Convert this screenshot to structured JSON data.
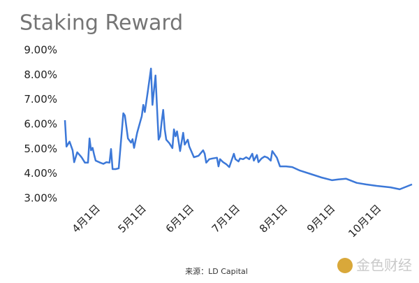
{
  "chart_data": {
    "type": "line",
    "title": "Staking Reward",
    "x": [
      "03-12",
      "03-13",
      "03-15",
      "03-17",
      "03-18",
      "03-20",
      "03-22",
      "03-23",
      "03-25",
      "03-27",
      "03-28",
      "03-29",
      "03-30",
      "03-31",
      "04-01",
      "04-04",
      "04-06",
      "04-08",
      "04-10",
      "04-11",
      "04-12",
      "04-14",
      "04-16",
      "04-19",
      "04-20",
      "04-22",
      "04-24",
      "04-25",
      "04-26",
      "04-28",
      "05-01",
      "05-02",
      "05-03",
      "05-05",
      "05-07",
      "05-08",
      "05-10",
      "05-11",
      "05-12",
      "05-13",
      "05-14",
      "05-15",
      "05-16",
      "05-17",
      "05-19",
      "05-21",
      "05-22",
      "05-23",
      "05-24",
      "05-26",
      "05-28",
      "05-29",
      "05-31",
      "06-01",
      "06-04",
      "06-07",
      "06-10",
      "06-11",
      "06-12",
      "06-14",
      "06-16",
      "06-19",
      "06-20",
      "06-21",
      "06-23",
      "06-25",
      "06-27",
      "06-30",
      "07-01",
      "07-03",
      "07-04",
      "07-06",
      "07-08",
      "07-10",
      "07-12",
      "07-13",
      "07-15",
      "07-16",
      "07-18",
      "07-20",
      "07-22",
      "07-24",
      "07-25",
      "07-28",
      "07-30",
      "08-03",
      "08-07",
      "08-12",
      "08-19",
      "08-26",
      "09-02",
      "09-06",
      "09-11",
      "09-18",
      "09-24",
      "10-01",
      "10-10",
      "10-16",
      "10-24"
    ],
    "series": [
      {
        "color": "#3c78d8",
        "values": [
          6.17,
          5.1,
          5.3,
          4.95,
          4.47,
          4.87,
          4.73,
          4.65,
          4.45,
          4.45,
          5.43,
          4.95,
          5.05,
          4.77,
          4.53,
          4.45,
          4.4,
          4.47,
          4.45,
          5.0,
          4.19,
          4.19,
          4.22,
          6.45,
          6.36,
          5.43,
          5.26,
          5.4,
          5.05,
          5.66,
          6.33,
          6.79,
          6.5,
          7.36,
          8.26,
          6.79,
          7.98,
          6.65,
          5.38,
          5.52,
          6.11,
          6.59,
          5.8,
          5.38,
          5.24,
          5.04,
          5.8,
          5.52,
          5.72,
          4.92,
          5.66,
          5.18,
          5.38,
          5.1,
          4.67,
          4.73,
          4.95,
          4.81,
          4.45,
          4.59,
          4.62,
          4.65,
          4.3,
          4.59,
          4.47,
          4.39,
          4.27,
          4.81,
          4.59,
          4.5,
          4.62,
          4.59,
          4.67,
          4.59,
          4.81,
          4.53,
          4.76,
          4.47,
          4.62,
          4.7,
          4.65,
          4.53,
          4.92,
          4.65,
          4.3,
          4.3,
          4.27,
          4.13,
          3.99,
          3.85,
          3.74,
          3.77,
          3.8,
          3.63,
          3.57,
          3.51,
          3.45,
          3.37,
          3.57
        ]
      }
    ],
    "xlim": [
      "03-12",
      "10-24"
    ],
    "xticks": [
      {
        "value": "04-01",
        "label": "4月1日"
      },
      {
        "value": "05-01",
        "label": "5月1日"
      },
      {
        "value": "06-01",
        "label": "6月1日"
      },
      {
        "value": "07-01",
        "label": "7月1日"
      },
      {
        "value": "08-01",
        "label": "8月1日"
      },
      {
        "value": "09-01",
        "label": "9月1日"
      },
      {
        "value": "10-01",
        "label": "10月1日"
      }
    ],
    "ylim": [
      3,
      9
    ],
    "yticks": [
      {
        "value": 3,
        "label": "3.00%"
      },
      {
        "value": 4,
        "label": "4.00%"
      },
      {
        "value": 5,
        "label": "5.00%"
      },
      {
        "value": 6,
        "label": "6.00%"
      },
      {
        "value": 7,
        "label": "7.00%"
      },
      {
        "value": 8,
        "label": "8.00%"
      },
      {
        "value": 9,
        "label": "9.00%"
      }
    ],
    "grid": false,
    "source": "来源：LD Capital",
    "watermark": "金色财经"
  }
}
